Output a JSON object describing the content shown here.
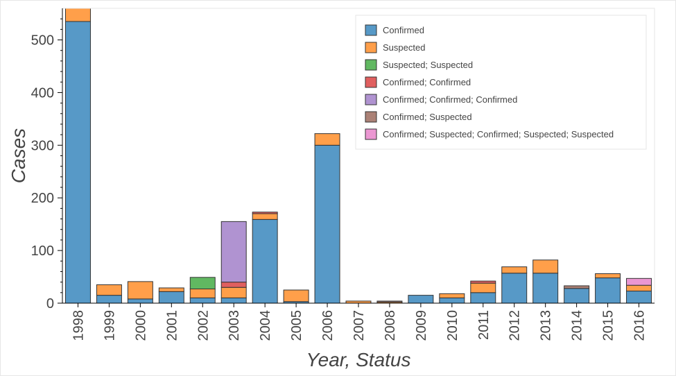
{
  "chart_data": {
    "type": "bar",
    "stacked": true,
    "xlabel": "Year, Status",
    "ylabel": "Cases",
    "ylim": [
      0,
      560
    ],
    "yticks": [
      0,
      100,
      200,
      300,
      400,
      500
    ],
    "legend_position": "top-right",
    "grid": false,
    "categories": [
      "1998",
      "1999",
      "2000",
      "2001",
      "2002",
      "2003",
      "2004",
      "2005",
      "2006",
      "2007",
      "2008",
      "2009",
      "2010",
      "2011",
      "2012",
      "2013",
      "2014",
      "2015",
      "2016"
    ],
    "series": [
      {
        "name": "Confirmed",
        "color": "#5799c7",
        "values": [
          535,
          15,
          8,
          22,
          10,
          10,
          159,
          3,
          300,
          0,
          0,
          15,
          10,
          20,
          57,
          57,
          28,
          48,
          23
        ]
      },
      {
        "name": "Suspected",
        "color": "#ff9f4a",
        "values": [
          25,
          20,
          33,
          7,
          17,
          20,
          11,
          22,
          22,
          4,
          2,
          0,
          8,
          18,
          12,
          25,
          0,
          8,
          11
        ]
      },
      {
        "name": "Suspected; Suspected",
        "color": "#61b861",
        "values": [
          0,
          0,
          0,
          0,
          22,
          0,
          0,
          0,
          0,
          0,
          0,
          0,
          0,
          0,
          0,
          0,
          0,
          0,
          0
        ]
      },
      {
        "name": "Confirmed; Confirmed",
        "color": "#e05f5f",
        "values": [
          0,
          0,
          0,
          0,
          0,
          10,
          3,
          0,
          0,
          0,
          0,
          0,
          0,
          4,
          0,
          0,
          0,
          0,
          0
        ]
      },
      {
        "name": "Confirmed; Confirmed; Confirmed",
        "color": "#b093d1",
        "values": [
          0,
          0,
          0,
          0,
          0,
          115,
          0,
          0,
          0,
          0,
          0,
          0,
          0,
          0,
          0,
          0,
          0,
          0,
          0
        ]
      },
      {
        "name": "Confirmed; Suspected",
        "color": "#ab8176",
        "values": [
          0,
          0,
          0,
          0,
          0,
          0,
          0,
          0,
          0,
          0,
          2,
          0,
          0,
          0,
          0,
          0,
          5,
          0,
          0
        ]
      },
      {
        "name": "Confirmed; Suspected; Confirmed; Suspected; Suspected",
        "color": "#eb97d2",
        "values": [
          0,
          0,
          0,
          0,
          0,
          0,
          0,
          0,
          0,
          0,
          0,
          0,
          0,
          0,
          0,
          0,
          0,
          0,
          13
        ]
      }
    ]
  }
}
